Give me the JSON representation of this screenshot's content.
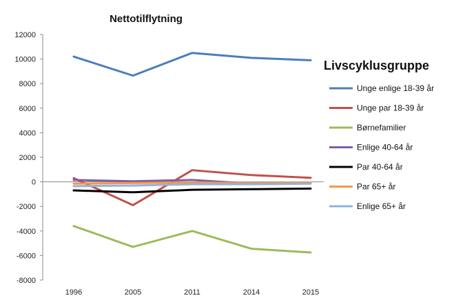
{
  "chart_data": {
    "type": "line",
    "title": "Nettotilflytning",
    "legend_title": "Livscyklusgruppe",
    "legend_position": "right",
    "xlabel": "",
    "ylabel": "",
    "categories": [
      "1996",
      "2005",
      "2011",
      "2014",
      "2015"
    ],
    "ylim": [
      -8000,
      12000
    ],
    "yticks": [
      12000,
      10000,
      8000,
      6000,
      4000,
      2000,
      0,
      -2000,
      -4000,
      -6000,
      -8000
    ],
    "ytick_labels": [
      "12000",
      "10000",
      "8000",
      "6000",
      "4000",
      "2000",
      "0",
      "-2000",
      "-4000",
      "-6000",
      "-8000"
    ],
    "grid": false,
    "series": [
      {
        "name": "Unge enlige 18-39 år",
        "color": "#4a7ebb",
        "values": [
          10200,
          8650,
          10500,
          10100,
          9900
        ]
      },
      {
        "name": "Unge par 18-39 år",
        "color": "#c0504d",
        "values": [
          300,
          -1900,
          950,
          550,
          330
        ]
      },
      {
        "name": "Børnefamilier",
        "color": "#9bbb59",
        "values": [
          -3600,
          -5300,
          -4000,
          -5450,
          -5750
        ]
      },
      {
        "name": "Enlige 40-64 år",
        "color": "#7f5fa0",
        "values": [
          150,
          50,
          150,
          -150,
          -100
        ]
      },
      {
        "name": "Par 40-64 år",
        "color": "#000000",
        "values": [
          -700,
          -850,
          -650,
          -600,
          -550
        ]
      },
      {
        "name": "Par 65+ år",
        "color": "#f79646",
        "values": [
          -150,
          -100,
          -50,
          -100,
          -50
        ]
      },
      {
        "name": "Enlige 65+ år",
        "color": "#8eb4e3",
        "values": [
          -350,
          -300,
          -200,
          -200,
          -150
        ]
      }
    ]
  }
}
